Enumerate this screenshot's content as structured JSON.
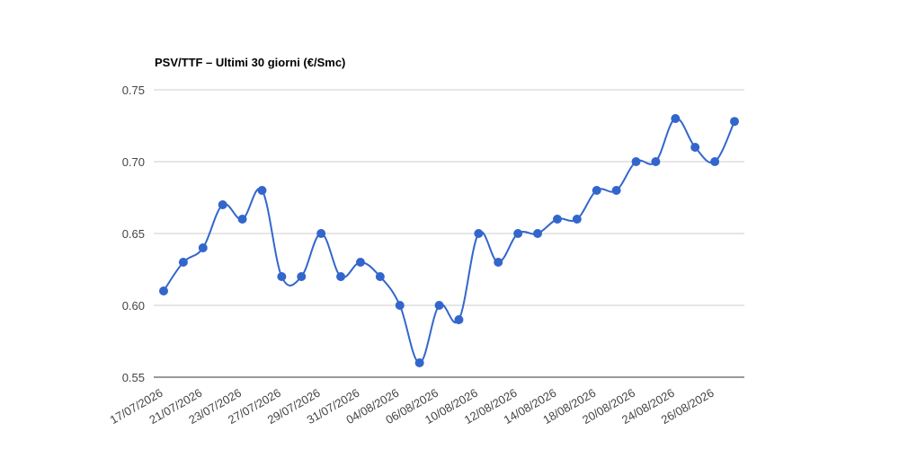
{
  "chart_data": {
    "type": "line",
    "title": "PSV/TTF – Ultimi 30 giorni (€/Smc)",
    "categories": [
      "17/07/2026",
      null,
      "21/07/2026",
      null,
      "23/07/2026",
      null,
      "27/07/2026",
      null,
      "29/07/2026",
      null,
      "31/07/2026",
      null,
      "04/08/2026",
      null,
      "06/08/2026",
      null,
      "10/08/2026",
      null,
      "12/08/2026",
      null,
      "14/08/2026",
      null,
      "18/08/2026",
      null,
      "20/08/2026",
      null,
      "24/08/2026",
      null,
      "26/08/2026",
      null
    ],
    "series": [
      {
        "name": "PSV/TTF",
        "color": "#3366cc",
        "values": [
          0.61,
          0.63,
          0.64,
          0.67,
          0.66,
          0.68,
          0.62,
          0.62,
          0.65,
          0.62,
          0.63,
          0.62,
          0.6,
          0.56,
          0.6,
          0.59,
          0.65,
          0.63,
          0.65,
          0.65,
          0.66,
          0.66,
          0.68,
          0.68,
          0.7,
          0.7,
          0.73,
          0.71,
          0.7,
          0.728
        ]
      }
    ],
    "ylim": [
      0.55,
      0.75
    ],
    "yticks": [
      0.55,
      {
        "value": 0.6,
        "label": "0.60"
      },
      0.65,
      {
        "value": 0.7,
        "label": "0.70"
      },
      0.75
    ],
    "grid": true
  }
}
